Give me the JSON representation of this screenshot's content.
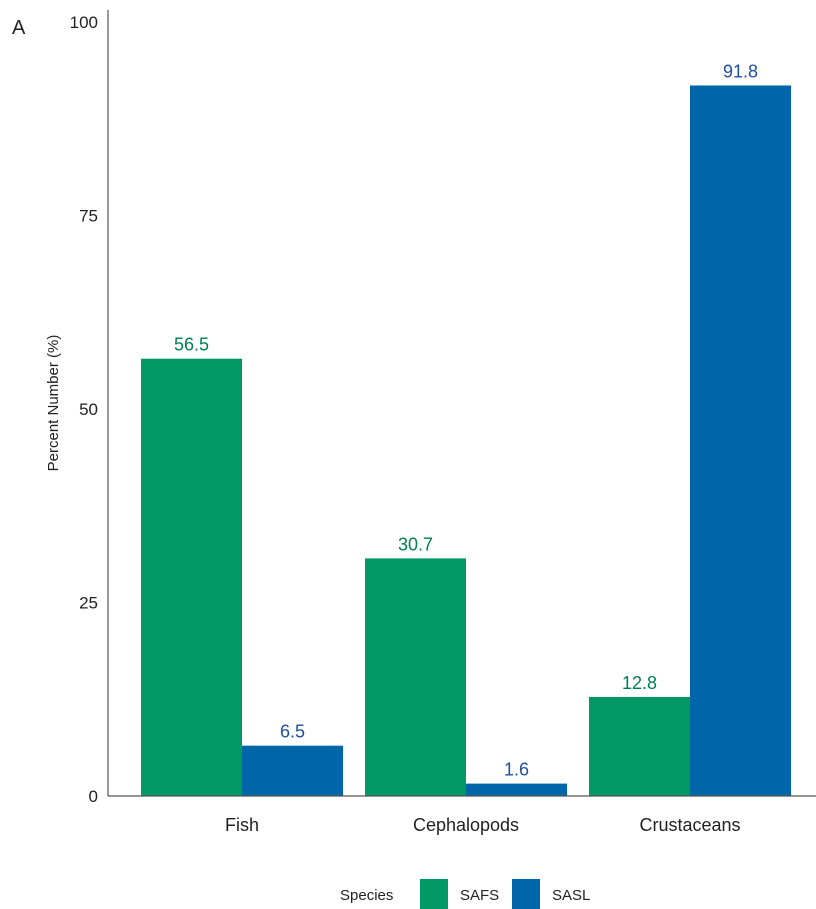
{
  "panel_label": "A",
  "colors": {
    "SAFS": "#009966",
    "SASL": "#0066AA",
    "SAFS_label": "#00804F",
    "SASL_label": "#1F4E9C"
  },
  "chart_data": {
    "type": "bar",
    "categories": [
      "Fish",
      "Cephalopods",
      "Crustaceans"
    ],
    "series": [
      {
        "name": "SAFS",
        "values": [
          56.5,
          30.7,
          12.8
        ]
      },
      {
        "name": "SASL",
        "values": [
          6.5,
          1.6,
          91.8
        ]
      }
    ],
    "data_labels": [
      [
        "56.5",
        "30.7",
        "12.8"
      ],
      [
        "6.5",
        "1.6",
        "91.8"
      ]
    ],
    "ylabel": "Percent Number (%)",
    "xlabel": "",
    "ylim": [
      0,
      100
    ],
    "yticks": [
      "0",
      "25",
      "50",
      "75",
      "100"
    ],
    "legend": {
      "title": "Species",
      "position": "bottom"
    },
    "grid": false
  }
}
